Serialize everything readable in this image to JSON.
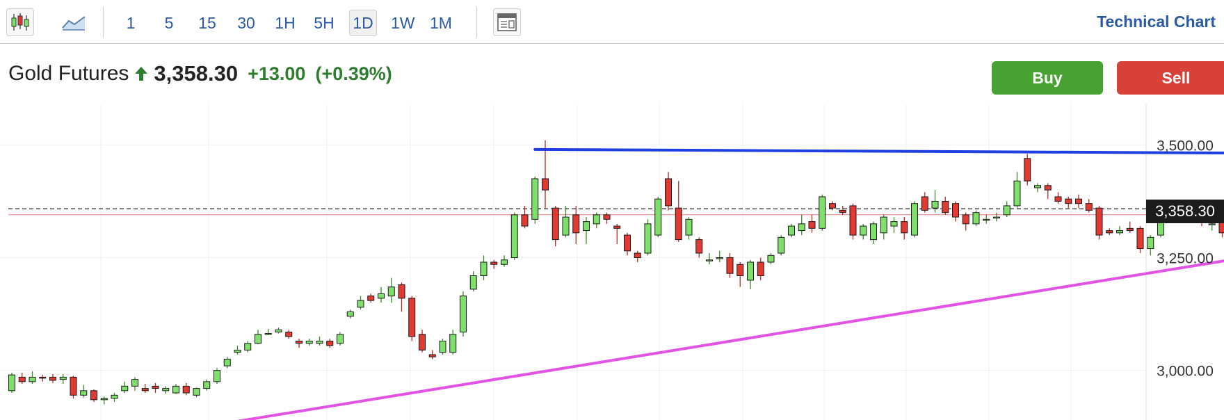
{
  "toolbar": {
    "timeframes": [
      "1",
      "5",
      "15",
      "30",
      "1H",
      "5H",
      "1D",
      "1W",
      "1M"
    ],
    "active_timeframe": "1D",
    "title": "Technical Chart",
    "icons": [
      "candlestick-chart-icon",
      "area-chart-icon",
      "layout-panel-icon"
    ]
  },
  "quote": {
    "name": "Gold Futures",
    "price": "3,358.30",
    "change": "+13.00",
    "change_pct": "(+0.39%)",
    "up_color": "#2f7d2f"
  },
  "actions": {
    "buy_label": "Buy",
    "sell_label": "Sell"
  },
  "colors": {
    "bull": "#7ee06a",
    "bear": "#e03a32",
    "resistance": "#1f3fe0",
    "support": "#e353e3",
    "buy": "#47a231",
    "sell": "#d8403a"
  },
  "chart_data": {
    "type": "candlestick",
    "instrument": "Gold Futures",
    "interval": "1D",
    "y_ticks": [
      "3,500.00",
      "3,250.00",
      "3,000.00"
    ],
    "y_tick_values": [
      3500,
      3250,
      3000
    ],
    "ylim": [
      2890,
      3590
    ],
    "last_price": 3358.3,
    "last_price_label": "3,358.30",
    "reference_price": 3345.3,
    "grid": true,
    "candles": [
      [
        2955,
        2990,
        2950,
        2995
      ],
      [
        2985,
        2975,
        2970,
        2995
      ],
      [
        2975,
        2985,
        2970,
        2998
      ],
      [
        2985,
        2983,
        2975,
        2990
      ],
      [
        2985,
        2978,
        2972,
        2992
      ],
      [
        2980,
        2985,
        2970,
        2992
      ],
      [
        2985,
        2945,
        2938,
        2988
      ],
      [
        2945,
        2955,
        2940,
        2968
      ],
      [
        2955,
        2935,
        2930,
        2958
      ],
      [
        2935,
        2938,
        2925,
        2942
      ],
      [
        2938,
        2945,
        2930,
        2950
      ],
      [
        2955,
        2965,
        2950,
        2975
      ],
      [
        2965,
        2980,
        2955,
        2985
      ],
      [
        2960,
        2955,
        2950,
        2970
      ],
      [
        2965,
        2960,
        2950,
        2972
      ],
      [
        2955,
        2960,
        2948,
        2965
      ],
      [
        2950,
        2965,
        2948,
        2970
      ],
      [
        2965,
        2950,
        2945,
        2972
      ],
      [
        2945,
        2960,
        2940,
        2962
      ],
      [
        2960,
        2975,
        2955,
        2980
      ],
      [
        2975,
        3000,
        2970,
        3005
      ],
      [
        3010,
        3025,
        3005,
        3030
      ],
      [
        3040,
        3045,
        3035,
        3055
      ],
      [
        3045,
        3060,
        3040,
        3065
      ],
      [
        3060,
        3080,
        3058,
        3090
      ],
      [
        3080,
        3082,
        3078,
        3092
      ],
      [
        3085,
        3090,
        3082,
        3095
      ],
      [
        3085,
        3075,
        3070,
        3090
      ],
      [
        3065,
        3060,
        3050,
        3070
      ],
      [
        3060,
        3065,
        3055,
        3070
      ],
      [
        3060,
        3065,
        3055,
        3075
      ],
      [
        3065,
        3055,
        3050,
        3070
      ],
      [
        3060,
        3080,
        3055,
        3085
      ],
      [
        3120,
        3130,
        3115,
        3135
      ],
      [
        3140,
        3155,
        3135,
        3165
      ],
      [
        3165,
        3155,
        3150,
        3170
      ],
      [
        3160,
        3170,
        3150,
        3185
      ],
      [
        3165,
        3185,
        3150,
        3205
      ],
      [
        3190,
        3160,
        3130,
        3195
      ],
      [
        3160,
        3075,
        3065,
        3165
      ],
      [
        3080,
        3045,
        3040,
        3090
      ],
      [
        3035,
        3030,
        3025,
        3045
      ],
      [
        3040,
        3065,
        3035,
        3070
      ],
      [
        3040,
        3080,
        3035,
        3090
      ],
      [
        3085,
        3165,
        3075,
        3175
      ],
      [
        3180,
        3210,
        3175,
        3220
      ],
      [
        3210,
        3240,
        3200,
        3255
      ],
      [
        3240,
        3235,
        3225,
        3245
      ],
      [
        3235,
        3245,
        3230,
        3255
      ],
      [
        3250,
        3345,
        3245,
        3350
      ],
      [
        3345,
        3320,
        3315,
        3365
      ],
      [
        3335,
        3425,
        3325,
        3430
      ],
      [
        3425,
        3400,
        3360,
        3510
      ],
      [
        3360,
        3290,
        3275,
        3365
      ],
      [
        3300,
        3340,
        3295,
        3365
      ],
      [
        3345,
        3305,
        3280,
        3365
      ],
      [
        3310,
        3330,
        3280,
        3340
      ],
      [
        3325,
        3345,
        3315,
        3350
      ],
      [
        3345,
        3335,
        3325,
        3350
      ],
      [
        3320,
        3315,
        3280,
        3325
      ],
      [
        3300,
        3265,
        3255,
        3305
      ],
      [
        3260,
        3250,
        3240,
        3265
      ],
      [
        3260,
        3325,
        3255,
        3335
      ],
      [
        3300,
        3380,
        3295,
        3385
      ],
      [
        3425,
        3365,
        3355,
        3440
      ],
      [
        3360,
        3290,
        3285,
        3420
      ],
      [
        3300,
        3335,
        3290,
        3340
      ],
      [
        3290,
        3260,
        3250,
        3295
      ],
      [
        3245,
        3245,
        3235,
        3260
      ],
      [
        3250,
        3250,
        3240,
        3265
      ],
      [
        3250,
        3215,
        3205,
        3260
      ],
      [
        3235,
        3210,
        3185,
        3240
      ],
      [
        3200,
        3240,
        3180,
        3245
      ],
      [
        3240,
        3210,
        3200,
        3250
      ],
      [
        3240,
        3255,
        3235,
        3260
      ],
      [
        3260,
        3295,
        3255,
        3300
      ],
      [
        3300,
        3320,
        3295,
        3325
      ],
      [
        3310,
        3325,
        3300,
        3345
      ],
      [
        3330,
        3315,
        3305,
        3345
      ],
      [
        3315,
        3385,
        3310,
        3390
      ],
      [
        3370,
        3360,
        3355,
        3375
      ],
      [
        3355,
        3350,
        3345,
        3365
      ],
      [
        3365,
        3300,
        3290,
        3370
      ],
      [
        3300,
        3320,
        3290,
        3325
      ],
      [
        3290,
        3325,
        3280,
        3330
      ],
      [
        3305,
        3340,
        3290,
        3345
      ],
      [
        3320,
        3330,
        3305,
        3340
      ],
      [
        3330,
        3305,
        3290,
        3340
      ],
      [
        3300,
        3370,
        3295,
        3375
      ],
      [
        3385,
        3355,
        3350,
        3395
      ],
      [
        3360,
        3375,
        3350,
        3400
      ],
      [
        3375,
        3350,
        3345,
        3385
      ],
      [
        3370,
        3340,
        3330,
        3375
      ],
      [
        3345,
        3325,
        3310,
        3350
      ],
      [
        3325,
        3350,
        3320,
        3355
      ],
      [
        3335,
        3335,
        3325,
        3345
      ],
      [
        3340,
        3340,
        3330,
        3350
      ],
      [
        3345,
        3365,
        3340,
        3375
      ],
      [
        3365,
        3420,
        3360,
        3440
      ],
      [
        3470,
        3420,
        3410,
        3480
      ],
      [
        3405,
        3410,
        3395,
        3415
      ],
      [
        3410,
        3400,
        3380,
        3415
      ],
      [
        3385,
        3375,
        3370,
        3395
      ],
      [
        3380,
        3370,
        3360,
        3385
      ],
      [
        3380,
        3370,
        3360,
        3390
      ],
      [
        3370,
        3355,
        3350,
        3380
      ],
      [
        3360,
        3300,
        3290,
        3365
      ],
      [
        3310,
        3305,
        3300,
        3315
      ],
      [
        3305,
        3310,
        3300,
        3320
      ],
      [
        3315,
        3310,
        3305,
        3330
      ],
      [
        3315,
        3270,
        3260,
        3320
      ],
      [
        3270,
        3295,
        3255,
        3300
      ],
      [
        3300,
        3330,
        3295,
        3335
      ],
      [
        3340,
        3345,
        3330,
        3350
      ],
      [
        3345,
        3350,
        3335,
        3355
      ],
      [
        3355,
        3340,
        3330,
        3360
      ],
      [
        3340,
        3330,
        3320,
        3350
      ],
      [
        3325,
        3325,
        3310,
        3335
      ],
      [
        3335,
        3305,
        3295,
        3345
      ],
      [
        3310,
        3315,
        3305,
        3320
      ],
      [
        3315,
        3320,
        3310,
        3325
      ],
      [
        3330,
        3355,
        3320,
        3360
      ],
      [
        3365,
        3370,
        3360,
        3375
      ],
      [
        3370,
        3360,
        3355,
        3375
      ],
      [
        3355,
        3355,
        3345,
        3360
      ],
      [
        3355,
        3330,
        3320,
        3360
      ],
      [
        3335,
        3360,
        3330,
        3375
      ],
      [
        3345,
        3345,
        3320,
        3355
      ],
      [
        3345,
        3355,
        3340,
        3360
      ],
      [
        3345,
        3355,
        3340,
        3362
      ]
    ],
    "trendlines": [
      {
        "name": "resistance",
        "color": "#1f3fe0",
        "from": [
          51,
          3490
        ],
        "to": [
          135,
          3480
        ]
      },
      {
        "name": "support",
        "color": "#e353e3",
        "from": [
          16,
          2865
        ],
        "to": [
          135,
          3305
        ]
      }
    ]
  }
}
